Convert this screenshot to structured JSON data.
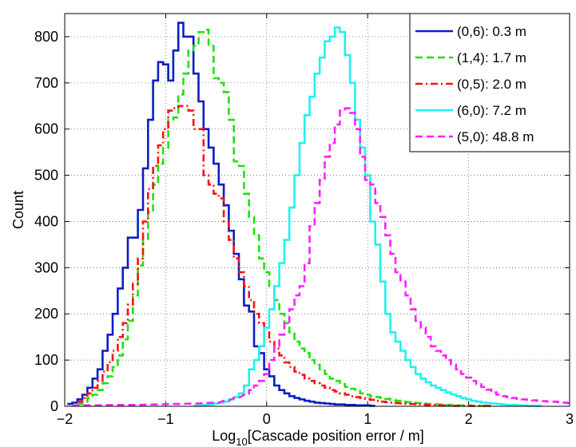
{
  "chart_data": {
    "type": "line",
    "step": true,
    "xlabel": {
      "prefix": "Log",
      "subscript": "10",
      "suffix": "[Cascade position error / m]"
    },
    "ylabel": "Count",
    "xlim": [
      -2,
      3
    ],
    "ylim": [
      0,
      850
    ],
    "xticks": [
      -2,
      -1,
      0,
      1,
      2,
      3
    ],
    "xtick_labels": [
      "−2",
      "−1",
      "0",
      "1",
      "2",
      "3"
    ],
    "yticks": [
      0,
      100,
      200,
      300,
      400,
      500,
      600,
      700,
      800
    ],
    "grid": true,
    "legend_position": "top-right",
    "bin_width": 0.05,
    "series": [
      {
        "name": "(0,6): 0.3 m",
        "color": "#0a1fbf",
        "dash": "solid",
        "x": [
          -1.95,
          -1.9,
          -1.85,
          -1.8,
          -1.75,
          -1.7,
          -1.65,
          -1.6,
          -1.55,
          -1.5,
          -1.45,
          -1.4,
          -1.35,
          -1.3,
          -1.25,
          -1.2,
          -1.15,
          -1.1,
          -1.05,
          -1.0,
          -0.95,
          -0.9,
          -0.85,
          -0.8,
          -0.75,
          -0.7,
          -0.65,
          -0.6,
          -0.55,
          -0.5,
          -0.45,
          -0.4,
          -0.35,
          -0.3,
          -0.25,
          -0.2,
          -0.15,
          -0.1,
          -0.05,
          0.0,
          0.05,
          0.1,
          0.15,
          0.2,
          0.25,
          0.3,
          0.35,
          0.4,
          0.45,
          0.5,
          0.55,
          0.6,
          0.65,
          0.7,
          0.75,
          0.8,
          0.85,
          0.9,
          0.95,
          1.0,
          1.05
        ],
        "values": [
          5,
          8,
          15,
          25,
          40,
          60,
          80,
          120,
          155,
          200,
          255,
          300,
          365,
          365,
          425,
          515,
          620,
          705,
          745,
          740,
          705,
          770,
          830,
          800,
          800,
          720,
          660,
          600,
          560,
          525,
          480,
          435,
          380,
          330,
          275,
          218,
          205,
          130,
          115,
          80,
          65,
          45,
          35,
          28,
          22,
          18,
          15,
          12,
          10,
          8,
          7,
          6,
          5,
          4,
          4,
          3,
          3,
          2,
          2,
          2,
          1
        ]
      },
      {
        "name": "(1,4): 1.7 m",
        "color": "#22e010",
        "dash": "dashed",
        "x": [
          -1.85,
          -1.8,
          -1.75,
          -1.7,
          -1.65,
          -1.6,
          -1.55,
          -1.5,
          -1.45,
          -1.4,
          -1.35,
          -1.3,
          -1.25,
          -1.2,
          -1.15,
          -1.1,
          -1.05,
          -1.0,
          -0.95,
          -0.9,
          -0.85,
          -0.8,
          -0.75,
          -0.7,
          -0.65,
          -0.6,
          -0.55,
          -0.5,
          -0.45,
          -0.4,
          -0.35,
          -0.3,
          -0.25,
          -0.2,
          -0.15,
          -0.1,
          -0.05,
          0.0,
          0.05,
          0.1,
          0.15,
          0.2,
          0.25,
          0.3,
          0.35,
          0.4,
          0.45,
          0.5,
          0.55,
          0.6,
          0.65,
          0.7,
          0.75,
          0.8,
          0.85,
          0.9,
          0.95,
          1.0,
          1.05,
          1.1,
          1.15,
          1.2,
          1.25,
          1.3,
          1.35,
          1.4,
          1.45,
          1.5,
          1.55,
          1.6,
          1.65,
          1.7,
          1.75,
          1.8,
          1.85,
          1.9,
          1.95,
          2.0,
          2.05,
          2.1,
          2.15,
          2.2
        ],
        "values": [
          5,
          10,
          18,
          25,
          35,
          50,
          65,
          85,
          110,
          145,
          185,
          240,
          305,
          360,
          420,
          480,
          525,
          560,
          620,
          625,
          675,
          720,
          770,
          780,
          810,
          815,
          780,
          710,
          700,
          680,
          620,
          530,
          520,
          460,
          410,
          370,
          320,
          290,
          260,
          230,
          200,
          180,
          160,
          140,
          125,
          115,
          100,
          90,
          80,
          70,
          60,
          55,
          48,
          42,
          38,
          33,
          28,
          25,
          22,
          20,
          18,
          16,
          14,
          12,
          10,
          9,
          8,
          7,
          6,
          5,
          5,
          4,
          4,
          3,
          3,
          2,
          2,
          2,
          1,
          1,
          1,
          1
        ]
      },
      {
        "name": "(0,5): 2.0 m",
        "color": "#ff1010",
        "dash": "dashdot",
        "x": [
          -1.85,
          -1.8,
          -1.75,
          -1.7,
          -1.65,
          -1.6,
          -1.55,
          -1.5,
          -1.45,
          -1.4,
          -1.35,
          -1.3,
          -1.25,
          -1.2,
          -1.15,
          -1.1,
          -1.05,
          -1.0,
          -0.95,
          -0.9,
          -0.85,
          -0.8,
          -0.75,
          -0.7,
          -0.65,
          -0.6,
          -0.55,
          -0.5,
          -0.45,
          -0.4,
          -0.35,
          -0.3,
          -0.25,
          -0.2,
          -0.15,
          -0.1,
          -0.05,
          0.0,
          0.05,
          0.1,
          0.15,
          0.2,
          0.25,
          0.3,
          0.35,
          0.4,
          0.45,
          0.5,
          0.55,
          0.6,
          0.65,
          0.7,
          0.75,
          0.8,
          0.85,
          0.9,
          0.95,
          1.0,
          1.05,
          1.1,
          1.15,
          1.2,
          1.25,
          1.3,
          1.35,
          1.4,
          1.45,
          1.5,
          1.55,
          1.6,
          1.65,
          1.7,
          1.75,
          1.8,
          1.85,
          1.9,
          1.95,
          2.0,
          2.05,
          2.1,
          2.15,
          2.2
        ],
        "values": [
          10,
          18,
          28,
          40,
          55,
          75,
          95,
          120,
          150,
          180,
          220,
          265,
          320,
          400,
          470,
          520,
          565,
          600,
          640,
          645,
          650,
          650,
          640,
          600,
          600,
          500,
          480,
          460,
          450,
          400,
          360,
          320,
          290,
          260,
          230,
          200,
          180,
          160,
          140,
          125,
          110,
          95,
          85,
          75,
          68,
          60,
          55,
          50,
          45,
          40,
          35,
          32,
          28,
          25,
          22,
          20,
          18,
          16,
          14,
          12,
          10,
          9,
          8,
          7,
          6,
          5,
          5,
          4,
          4,
          3,
          3,
          2,
          2,
          2,
          1,
          1,
          1,
          1,
          1,
          1,
          1,
          1
        ]
      },
      {
        "name": "(6,0): 7.2 m",
        "color": "#22f0f0",
        "dash": "solid",
        "x": [
          -0.7,
          -0.65,
          -0.6,
          -0.55,
          -0.5,
          -0.45,
          -0.4,
          -0.35,
          -0.3,
          -0.25,
          -0.2,
          -0.15,
          -0.1,
          -0.05,
          0.0,
          0.05,
          0.1,
          0.15,
          0.2,
          0.25,
          0.3,
          0.35,
          0.4,
          0.45,
          0.5,
          0.55,
          0.6,
          0.65,
          0.7,
          0.75,
          0.8,
          0.85,
          0.9,
          0.95,
          1.0,
          1.05,
          1.1,
          1.15,
          1.2,
          1.25,
          1.3,
          1.35,
          1.4,
          1.45,
          1.5,
          1.55,
          1.6,
          1.65,
          1.7,
          1.75,
          1.8,
          1.85,
          1.9,
          1.95,
          2.0,
          2.05,
          2.1,
          2.15,
          2.2,
          2.25,
          2.3,
          2.35,
          2.4,
          2.45,
          2.5,
          2.55,
          2.6,
          2.65,
          2.7
        ],
        "values": [
          1,
          2,
          3,
          4,
          6,
          8,
          10,
          15,
          20,
          28,
          45,
          80,
          100,
          130,
          170,
          210,
          260,
          310,
          360,
          430,
          500,
          570,
          630,
          670,
          720,
          755,
          790,
          800,
          820,
          810,
          760,
          700,
          620,
          560,
          500,
          400,
          350,
          270,
          200,
          160,
          140,
          120,
          100,
          85,
          70,
          60,
          52,
          45,
          40,
          35,
          30,
          26,
          22,
          18,
          15,
          12,
          10,
          8,
          7,
          6,
          5,
          4,
          3,
          3,
          2,
          2,
          1,
          1,
          1
        ]
      },
      {
        "name": "(5,0): 48.8 m",
        "color": "#ff20ff",
        "dash": "dashed",
        "x": [
          -1.9,
          -1.7,
          -1.5,
          -1.3,
          -1.1,
          -0.9,
          -0.7,
          -0.5,
          -0.4,
          -0.3,
          -0.2,
          -0.15,
          -0.1,
          -0.05,
          0.0,
          0.05,
          0.1,
          0.15,
          0.2,
          0.25,
          0.3,
          0.35,
          0.4,
          0.45,
          0.5,
          0.55,
          0.6,
          0.65,
          0.7,
          0.75,
          0.8,
          0.85,
          0.9,
          0.95,
          1.0,
          1.05,
          1.1,
          1.15,
          1.2,
          1.25,
          1.3,
          1.35,
          1.4,
          1.45,
          1.5,
          1.55,
          1.6,
          1.65,
          1.7,
          1.75,
          1.8,
          1.85,
          1.9,
          1.95,
          2.0,
          2.05,
          2.1,
          2.15,
          2.2,
          2.25,
          2.3,
          2.35,
          2.4,
          2.45,
          2.5,
          2.55,
          2.6,
          2.65,
          2.7,
          2.75,
          2.8,
          2.85,
          2.9,
          2.95,
          3.0
        ],
        "values": [
          2,
          2,
          3,
          3,
          4,
          5,
          6,
          8,
          12,
          18,
          25,
          35,
          45,
          55,
          70,
          100,
          130,
          155,
          180,
          210,
          240,
          260,
          310,
          390,
          440,
          490,
          540,
          570,
          610,
          640,
          645,
          635,
          600,
          540,
          490,
          480,
          440,
          410,
          370,
          330,
          290,
          270,
          240,
          210,
          185,
          170,
          150,
          130,
          120,
          110,
          100,
          90,
          80,
          70,
          62,
          55,
          48,
          42,
          36,
          30,
          25,
          22,
          20,
          18,
          16,
          15,
          14,
          13,
          12,
          11,
          10,
          10,
          9,
          8,
          7
        ]
      }
    ]
  }
}
